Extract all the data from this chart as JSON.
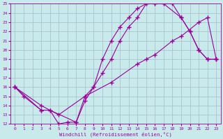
{
  "xlabel": "Windchill (Refroidissement éolien,°C)",
  "xlim": [
    -0.5,
    23.5
  ],
  "ylim": [
    12,
    25
  ],
  "xticks": [
    0,
    1,
    2,
    3,
    4,
    5,
    6,
    7,
    8,
    9,
    10,
    11,
    12,
    13,
    14,
    15,
    16,
    17,
    18,
    19,
    20,
    21,
    22,
    23
  ],
  "yticks": [
    12,
    13,
    14,
    15,
    16,
    17,
    18,
    19,
    20,
    21,
    22,
    23,
    24,
    25
  ],
  "line1_x": [
    0,
    1,
    3,
    4,
    5,
    6,
    7,
    8,
    9,
    10,
    11,
    12,
    13,
    14,
    15,
    16,
    17,
    18,
    19,
    20,
    21,
    22,
    23
  ],
  "line1_y": [
    16,
    15,
    13.5,
    13.5,
    12,
    12.2,
    12.2,
    15,
    16,
    17.5,
    19,
    21,
    22.5,
    23.5,
    25,
    25,
    25,
    25,
    23.5,
    22,
    20,
    19,
    19
  ],
  "line2_x": [
    0,
    3,
    4,
    7,
    8,
    9,
    10,
    11,
    12,
    13,
    14,
    15,
    16,
    17,
    19,
    20,
    21,
    22,
    23
  ],
  "line2_y": [
    16,
    13.5,
    13.5,
    12.2,
    14.5,
    16,
    19,
    21,
    22.5,
    23.5,
    24.5,
    25,
    25,
    25,
    23.5,
    22,
    20,
    19,
    19
  ],
  "line3_x": [
    0,
    3,
    5,
    8,
    11,
    14,
    15,
    16,
    18,
    19,
    21,
    22,
    23
  ],
  "line3_y": [
    16,
    14,
    13,
    15,
    16.5,
    18.5,
    19,
    19.5,
    21,
    21.5,
    23,
    23.5,
    19
  ],
  "line_color": "#990099",
  "bg_color": "#c8eaea",
  "grid_color": "#a8b8cc",
  "marker": "+",
  "lw": 0.8,
  "markersize": 4,
  "markeredgewidth": 1.0
}
